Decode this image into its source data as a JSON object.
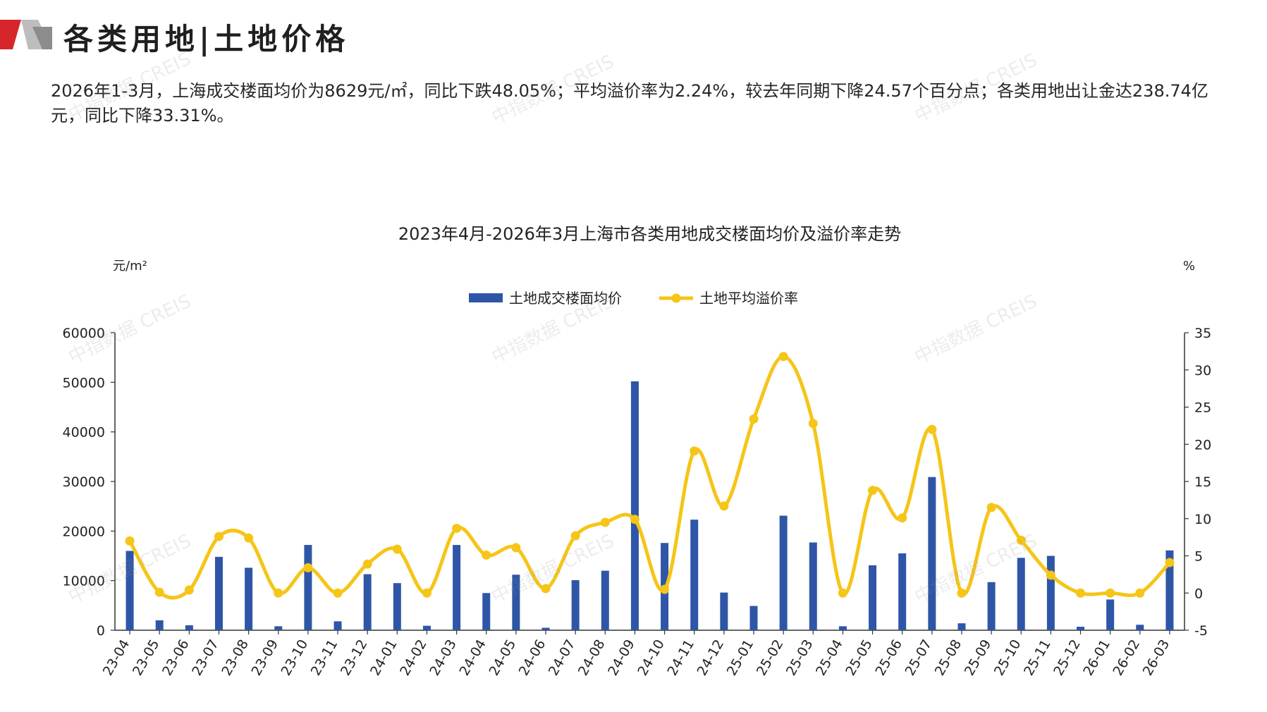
{
  "header": {
    "title": "各类用地|土地价格",
    "summary": "2026年1-3月，上海成交楼面均价为8629元/㎡，同比下跌48.05%；平均溢价率为2.24%，较去年同期下降24.57个百分点；各类用地出让金达238.74亿元，同比下降33.31%。"
  },
  "watermark": "中指数据 CREIS",
  "colors": {
    "bar": "#2f56a6",
    "line": "#f5c518",
    "logo_red": "#d7262b",
    "logo_grey": "#9a9a9a"
  },
  "chart_data": {
    "type": "bar+line",
    "title": "2023年4月-2026年3月上海市各类用地成交楼面均价及溢价率走势",
    "y_left_unit": "元/m²",
    "y_right_unit": "%",
    "ylim_left": [
      0,
      60000
    ],
    "ylim_right": [
      -5,
      35
    ],
    "yticks_left": [
      0,
      10000,
      20000,
      30000,
      40000,
      50000,
      60000
    ],
    "yticks_right": [
      -5,
      0,
      5,
      10,
      15,
      20,
      25,
      30,
      35
    ],
    "legend_position": "top-center",
    "categories": [
      "23-04",
      "23-05",
      "23-06",
      "23-07",
      "23-08",
      "23-09",
      "23-10",
      "23-11",
      "23-12",
      "24-01",
      "24-02",
      "24-03",
      "24-04",
      "24-05",
      "24-06",
      "24-07",
      "24-08",
      "24-09",
      "24-10",
      "24-11",
      "24-12",
      "25-01",
      "25-02",
      "25-03",
      "25-04",
      "25-05",
      "25-06",
      "25-07",
      "25-08",
      "25-09",
      "25-10",
      "25-11",
      "25-12",
      "26-01",
      "26-02",
      "26-03"
    ],
    "series": [
      {
        "name": "土地成交楼面均价",
        "type": "bar",
        "axis": "left",
        "values": [
          16000,
          2000,
          1000,
          14800,
          12600,
          800,
          17200,
          1800,
          11300,
          9500,
          900,
          17200,
          7500,
          11200,
          500,
          10100,
          12000,
          50200,
          17600,
          22300,
          7600,
          4900,
          23100,
          17700,
          800,
          13100,
          15500,
          30900,
          1400,
          9700,
          14600,
          15000,
          700,
          6200,
          1100,
          16100
        ]
      },
      {
        "name": "土地平均溢价率",
        "type": "line",
        "axis": "right",
        "values": [
          7.0,
          0.1,
          0.4,
          7.6,
          7.4,
          0.0,
          3.4,
          0.0,
          3.9,
          5.9,
          0.0,
          8.7,
          5.1,
          6.1,
          0.6,
          7.7,
          9.5,
          9.9,
          0.5,
          19.1,
          11.7,
          23.4,
          31.8,
          22.8,
          0.0,
          13.8,
          10.1,
          22.0,
          0.0,
          11.5,
          7.1,
          2.4,
          0.0,
          0.0,
          0.0,
          4.1
        ]
      }
    ]
  }
}
